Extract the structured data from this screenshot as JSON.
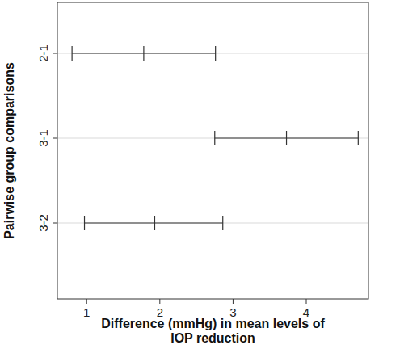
{
  "chart_data": {
    "type": "interval",
    "orientation": "horizontal",
    "y_label": "Pairwise group comparisons",
    "x_label": "Difference (mmHg) in mean levels of\nIOP reduction",
    "categories": [
      "2-1",
      "3-1",
      "3-2"
    ],
    "values": [
      1.78,
      3.73,
      1.93
    ],
    "lower": [
      0.8,
      2.75,
      0.97
    ],
    "upper": [
      2.76,
      4.71,
      2.86
    ],
    "xlim": [
      0.6,
      4.85
    ],
    "xticks": [
      1,
      2,
      3,
      4
    ],
    "grid": true,
    "color": "#333333"
  }
}
